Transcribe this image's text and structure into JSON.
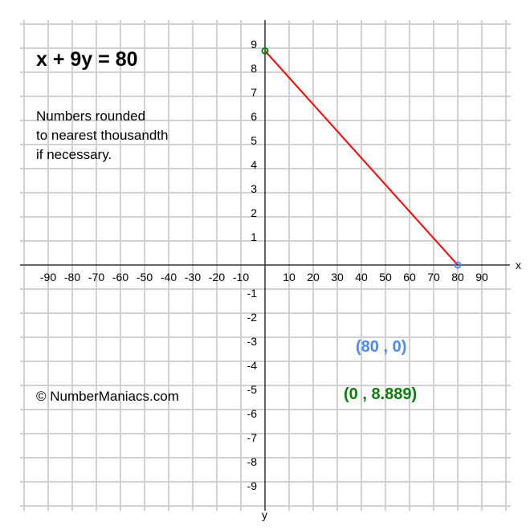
{
  "equation": "x + 9y = 80",
  "note_lines": [
    "Numbers rounded",
    "to nearest thousandth",
    "if necessary."
  ],
  "copyright": "© NumberManiacs.com",
  "point_labels": {
    "x_intercept": "(80 , 0)",
    "y_intercept": "(0 , 8.889)"
  },
  "colors": {
    "line": "#ff0000",
    "x_intercept": "#4a8af4",
    "y_intercept": "#0a7d0a",
    "grid": "#d0d0d0",
    "axis": "#333333"
  },
  "chart_data": {
    "type": "line",
    "title": "x + 9y = 80",
    "xlabel": "x",
    "ylabel": "y",
    "xlim": [
      -100,
      100
    ],
    "ylim": [
      -10,
      10
    ],
    "grid": true,
    "x_ticks": [
      "-90",
      "-80",
      "-70",
      "-60",
      "-50",
      "-40",
      "-30",
      "-20",
      "-10",
      "10",
      "20",
      "30",
      "40",
      "50",
      "60",
      "70",
      "80",
      "90"
    ],
    "y_ticks": [
      "9",
      "8",
      "7",
      "6",
      "5",
      "4",
      "3",
      "2",
      "1",
      "-1",
      "-2",
      "-3",
      "-4",
      "-5",
      "-6",
      "-7",
      "-8",
      "-9"
    ],
    "series": [
      {
        "points": [
          {
            "x": 0,
            "y": 8.889
          },
          {
            "x": 80,
            "y": 0
          }
        ]
      }
    ],
    "markers": [
      {
        "x": 80,
        "y": 0,
        "color": "#4a8af4"
      },
      {
        "x": 0,
        "y": 8.889,
        "color": "#0a7d0a"
      }
    ]
  }
}
